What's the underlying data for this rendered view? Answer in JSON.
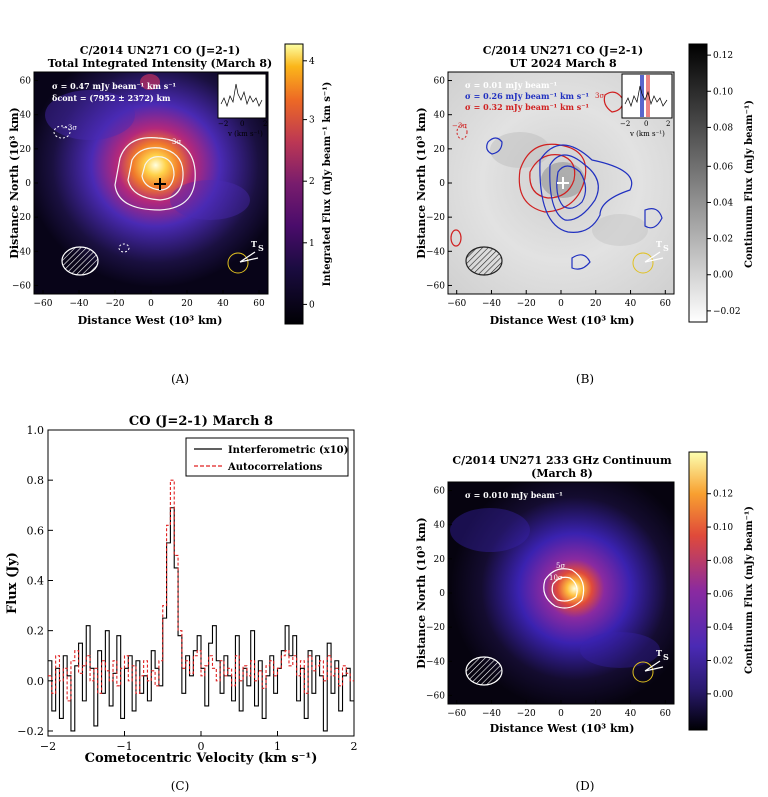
{
  "panels": {
    "A": {
      "caption": "(A)",
      "title1": "C/2014 UN271 CO (J=2-1)",
      "title2": "Total Integrated Intensity (March 8)",
      "sigma_text": "σ = 0.47 mJy beam⁻¹ km s⁻¹",
      "cont_text": "δcont = (7952 ± 2372) km",
      "xlabel": "Distance West (10³ km)",
      "ylabel": "Distance North (10³ km)",
      "cbar_label": "Integrated Flux (mJy beam⁻¹ km s⁻¹)",
      "xticks": [
        "−60",
        "−40",
        "−20",
        "0",
        "20",
        "40",
        "60"
      ],
      "yticks": [
        "60",
        "40",
        "20",
        "0",
        "−20",
        "−40",
        "−60"
      ],
      "cbar_ticks": [
        "4",
        "3",
        "2",
        "1",
        "0"
      ],
      "inset_xlabel": "v (km s⁻¹)",
      "inset_ticks": [
        "−2",
        "0",
        "2"
      ],
      "contour_labels": [
        "3σ",
        "−3σ"
      ],
      "ts_label": "T",
      "ts_sub": "S"
    },
    "B": {
      "caption": "(B)",
      "title1": "C/2014 UN271 CO (J=2-1)",
      "title2": "UT 2024 March 8",
      "sigma_white": "σ = 0.01 mJy beam⁻¹",
      "sigma_blue": "σ = 0.26 mJy beam⁻¹ km s⁻¹",
      "sigma_red": "σ = 0.32 mJy beam⁻¹ km s⁻¹",
      "xlabel": "Distance West (10³ km)",
      "ylabel": "Distance North (10³ km)",
      "cbar_label": "Continuum Flux (mJy beam⁻¹)",
      "xticks": [
        "−60",
        "−40",
        "−20",
        "0",
        "20",
        "40",
        "60"
      ],
      "yticks": [
        "60",
        "40",
        "20",
        "0",
        "−20",
        "−40",
        "−60"
      ],
      "cbar_ticks": [
        "0.12",
        "0.10",
        "0.08",
        "0.06",
        "0.04",
        "0.02",
        "0.00",
        "−0.02"
      ],
      "inset_xlabel": "v (km s⁻¹)",
      "inset_ticks": [
        "−2",
        "0",
        "2"
      ],
      "contour_labels": [
        "3σ",
        "−3σ"
      ],
      "ts_label": "T",
      "ts_sub": "S"
    },
    "C": {
      "caption": "(C)",
      "title": "CO (J=2-1) March 8",
      "xlabel": "Cometocentric Velocity (km s⁻¹)",
      "ylabel": "Flux (Jy)",
      "legend": [
        "Interferometric (x10)",
        "Autocorrelations"
      ],
      "xticks": [
        "−2",
        "−1",
        "0",
        "1",
        "2"
      ],
      "yticks": [
        "1.0",
        "0.8",
        "0.6",
        "0.4",
        "0.2",
        "0.0",
        "−0.2"
      ]
    },
    "D": {
      "caption": "(D)",
      "title1": "C/2014 UN271 233 GHz Continuum",
      "title2": "(March 8)",
      "sigma_text": "σ = 0.010 mJy beam⁻¹",
      "xlabel": "Distance West (10³ km)",
      "ylabel": "Distance North (10³ km)",
      "cbar_label": "Continuum Flux (mJy beam⁻¹)",
      "xticks": [
        "−60",
        "−40",
        "−20",
        "0",
        "20",
        "40",
        "60"
      ],
      "yticks": [
        "60",
        "40",
        "20",
        "0",
        "−20",
        "−40",
        "−60"
      ],
      "cbar_ticks": [
        "0.12",
        "0.10",
        "0.08",
        "0.06",
        "0.04",
        "0.02",
        "0.00"
      ],
      "contour_labels": [
        "5σ",
        "10σ"
      ],
      "ts_label": "T",
      "ts_sub": "S"
    }
  },
  "chart_data": {
    "type": "line",
    "title": "CO (J=2-1) March 8",
    "xlabel": "Cometocentric Velocity (km s⁻¹)",
    "ylabel": "Flux (Jy)",
    "xlim": [
      -2,
      2
    ],
    "ylim": [
      -0.22,
      1.0
    ],
    "series": [
      {
        "name": "Interferometric (x10)",
        "color": "#000000",
        "style": "steps",
        "x": [
          -2.0,
          -1.95,
          -1.9,
          -1.85,
          -1.8,
          -1.75,
          -1.7,
          -1.65,
          -1.6,
          -1.55,
          -1.5,
          -1.45,
          -1.4,
          -1.35,
          -1.3,
          -1.25,
          -1.2,
          -1.15,
          -1.1,
          -1.05,
          -1.0,
          -0.95,
          -0.9,
          -0.85,
          -0.8,
          -0.75,
          -0.7,
          -0.65,
          -0.6,
          -0.55,
          -0.5,
          -0.45,
          -0.4,
          -0.35,
          -0.3,
          -0.25,
          -0.2,
          -0.15,
          -0.1,
          -0.05,
          0.0,
          0.05,
          0.1,
          0.15,
          0.2,
          0.25,
          0.3,
          0.35,
          0.4,
          0.45,
          0.5,
          0.55,
          0.6,
          0.65,
          0.7,
          0.75,
          0.8,
          0.85,
          0.9,
          0.95,
          1.0,
          1.05,
          1.1,
          1.15,
          1.2,
          1.25,
          1.3,
          1.35,
          1.4,
          1.45,
          1.5,
          1.55,
          1.6,
          1.65,
          1.7,
          1.75,
          1.8,
          1.85,
          1.9,
          1.95
        ],
        "y": [
          0.08,
          -0.12,
          0.05,
          -0.15,
          0.1,
          0.02,
          -0.2,
          0.06,
          0.15,
          -0.08,
          0.22,
          0.05,
          -0.18,
          0.12,
          -0.05,
          0.2,
          -0.1,
          0.03,
          0.18,
          -0.15,
          0.05,
          0.1,
          -0.12,
          0.08,
          -0.05,
          0.02,
          -0.08,
          0.12,
          0.05,
          -0.02,
          0.25,
          0.55,
          0.69,
          0.45,
          0.18,
          -0.05,
          0.1,
          0.02,
          0.12,
          0.18,
          0.05,
          -0.1,
          0.15,
          0.22,
          0.08,
          -0.05,
          0.1,
          0.02,
          -0.08,
          0.18,
          -0.12,
          0.05,
          -0.02,
          0.2,
          -0.1,
          0.08,
          -0.15,
          0.02,
          0.1,
          -0.05,
          0.05,
          0.12,
          0.22,
          0.1,
          0.18,
          -0.08,
          0.05,
          -0.15,
          0.12,
          -0.05,
          0.1,
          0.02,
          -0.2,
          0.15,
          -0.05,
          0.08,
          -0.12,
          0.02,
          0.05,
          -0.08
        ]
      },
      {
        "name": "Autocorrelations",
        "color": "#e02020",
        "style": "dashed-steps",
        "x": [
          -2.0,
          -1.95,
          -1.9,
          -1.85,
          -1.8,
          -1.75,
          -1.7,
          -1.65,
          -1.6,
          -1.55,
          -1.5,
          -1.45,
          -1.4,
          -1.35,
          -1.3,
          -1.25,
          -1.2,
          -1.15,
          -1.1,
          -1.05,
          -1.0,
          -0.95,
          -0.9,
          -0.85,
          -0.8,
          -0.75,
          -0.7,
          -0.65,
          -0.6,
          -0.55,
          -0.5,
          -0.45,
          -0.4,
          -0.35,
          -0.3,
          -0.25,
          -0.2,
          -0.15,
          -0.1,
          -0.05,
          0.0,
          0.05,
          0.1,
          0.15,
          0.2,
          0.25,
          0.3,
          0.35,
          0.4,
          0.45,
          0.5,
          0.55,
          0.6,
          0.65,
          0.7,
          0.75,
          0.8,
          0.85,
          0.9,
          0.95,
          1.0,
          1.05,
          1.1,
          1.15,
          1.2,
          1.25,
          1.3,
          1.35,
          1.4,
          1.45,
          1.5,
          1.55,
          1.6,
          1.65,
          1.7,
          1.75,
          1.8,
          1.85,
          1.9,
          1.95
        ],
        "y": [
          0.02,
          -0.05,
          0.1,
          0.0,
          0.05,
          -0.08,
          0.08,
          0.12,
          0.03,
          0.06,
          0.1,
          0.0,
          0.05,
          -0.05,
          0.08,
          0.04,
          0.0,
          0.08,
          -0.02,
          0.05,
          0.1,
          0.0,
          0.06,
          -0.05,
          0.02,
          0.08,
          0.0,
          0.04,
          -0.02,
          0.08,
          0.3,
          0.62,
          0.8,
          0.5,
          0.2,
          0.05,
          0.08,
          0.03,
          0.1,
          0.12,
          0.02,
          0.06,
          0.1,
          0.05,
          0.0,
          0.08,
          0.02,
          0.05,
          -0.02,
          0.1,
          0.0,
          0.06,
          0.02,
          0.08,
          0.0,
          0.04,
          -0.03,
          0.06,
          0.08,
          0.02,
          0.05,
          0.1,
          0.12,
          0.06,
          0.1,
          0.02,
          0.08,
          -0.05,
          0.1,
          0.04,
          0.06,
          0.08,
          0.0,
          0.1,
          0.02,
          0.05,
          -0.02,
          0.06,
          0.03,
          0.0
        ]
      }
    ]
  }
}
